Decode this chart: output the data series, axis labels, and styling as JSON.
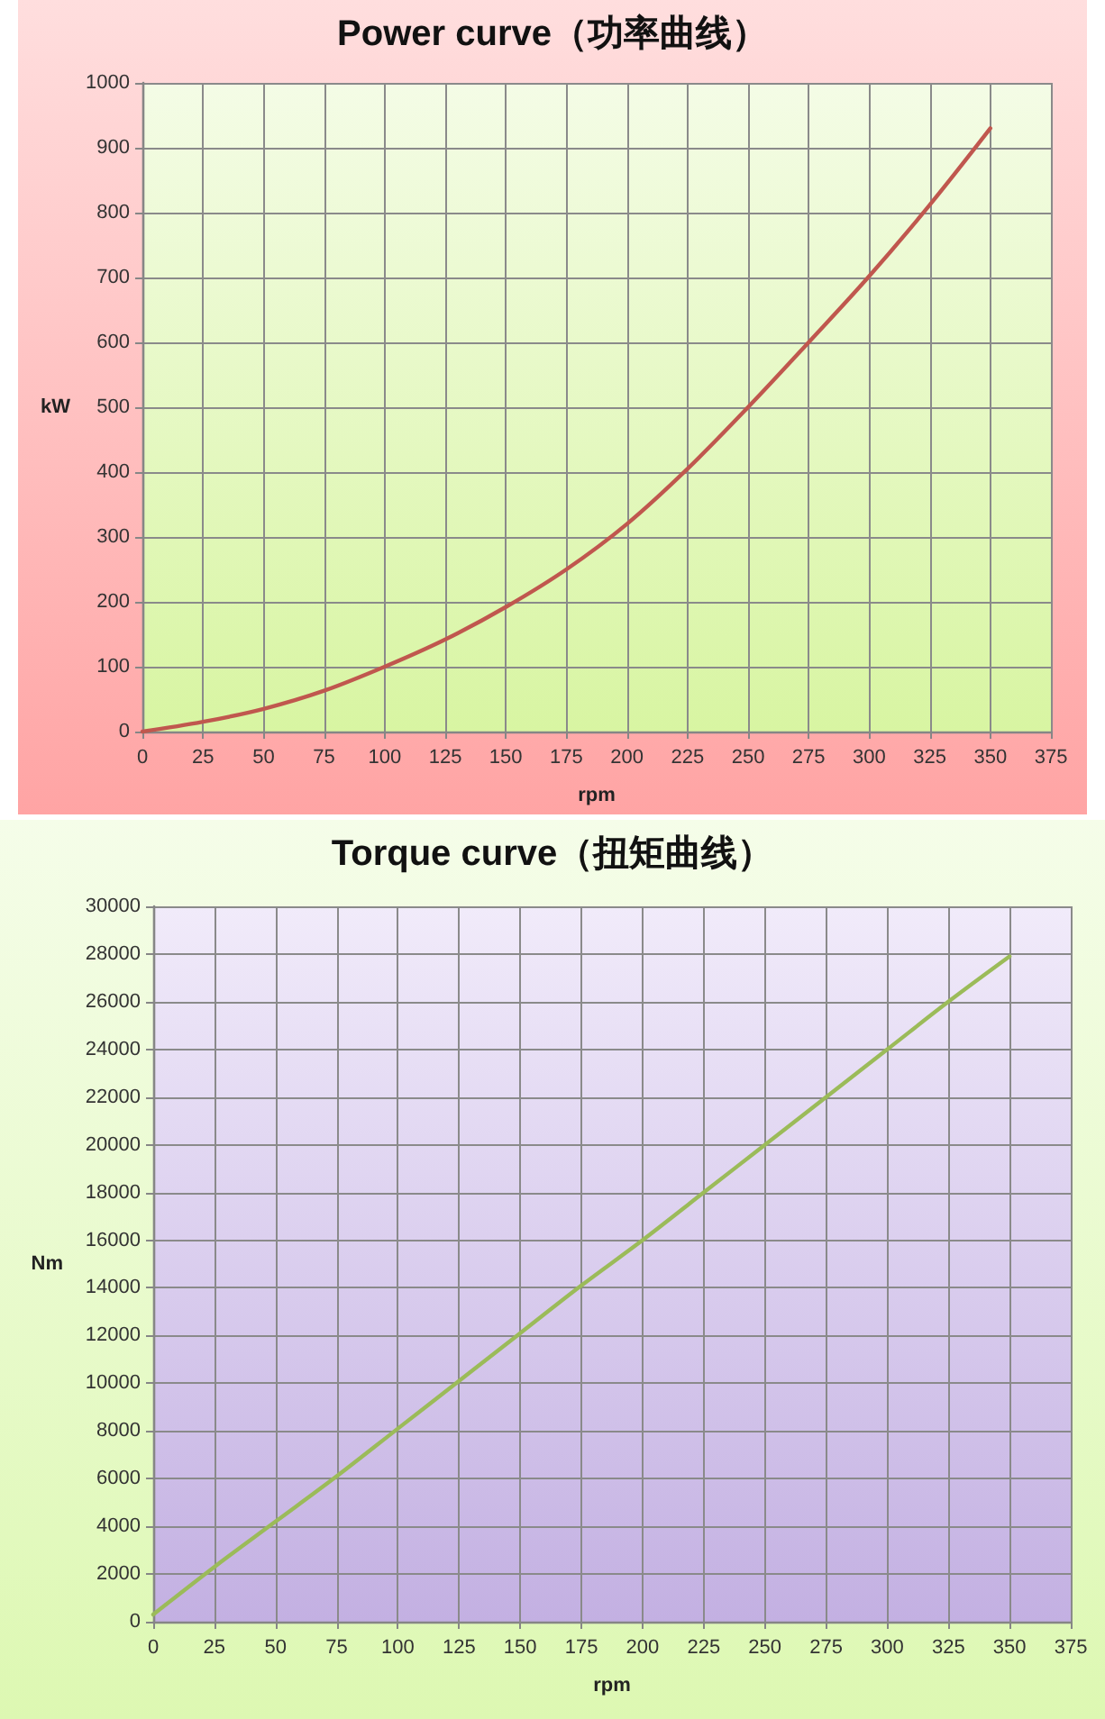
{
  "chart_data": [
    {
      "type": "line",
      "title": "Power curve（功率曲线）",
      "xlabel": "rpm",
      "ylabel": "kW",
      "x": [
        0,
        25,
        50,
        75,
        100,
        125,
        150,
        175,
        200,
        225,
        250,
        275,
        300,
        325,
        350
      ],
      "values": [
        0,
        15,
        35,
        63,
        100,
        142,
        192,
        250,
        320,
        405,
        500,
        600,
        702,
        812,
        930
      ],
      "color": "#c0574e",
      "xlim": [
        0,
        375
      ],
      "xticks": [
        0,
        25,
        50,
        75,
        100,
        125,
        150,
        175,
        200,
        225,
        250,
        275,
        300,
        325,
        350,
        375
      ],
      "ylim": [
        0,
        1000
      ],
      "yticks": [
        0,
        100,
        200,
        300,
        400,
        500,
        600,
        700,
        800,
        900,
        1000
      ],
      "grid": true,
      "marker": "none"
    },
    {
      "type": "line",
      "title": "Torque curve（扭矩曲线）",
      "xlabel": "rpm",
      "ylabel": "Nm",
      "x": [
        0,
        25,
        50,
        75,
        100,
        125,
        150,
        175,
        200,
        225,
        250,
        275,
        300,
        325,
        350
      ],
      "values": [
        300,
        2300,
        4200,
        6100,
        8100,
        10100,
        12100,
        14100,
        16000,
        18000,
        20000,
        22000,
        24000,
        26000,
        27900
      ],
      "color": "#9bbb59",
      "xlim": [
        0,
        375
      ],
      "xticks": [
        0,
        25,
        50,
        75,
        100,
        125,
        150,
        175,
        200,
        225,
        250,
        275,
        300,
        325,
        350,
        375
      ],
      "ylim": [
        0,
        30000
      ],
      "yticks": [
        0,
        2000,
        4000,
        6000,
        8000,
        10000,
        12000,
        14000,
        16000,
        18000,
        20000,
        22000,
        24000,
        26000,
        28000,
        30000
      ],
      "grid": true,
      "marker": "none"
    }
  ]
}
